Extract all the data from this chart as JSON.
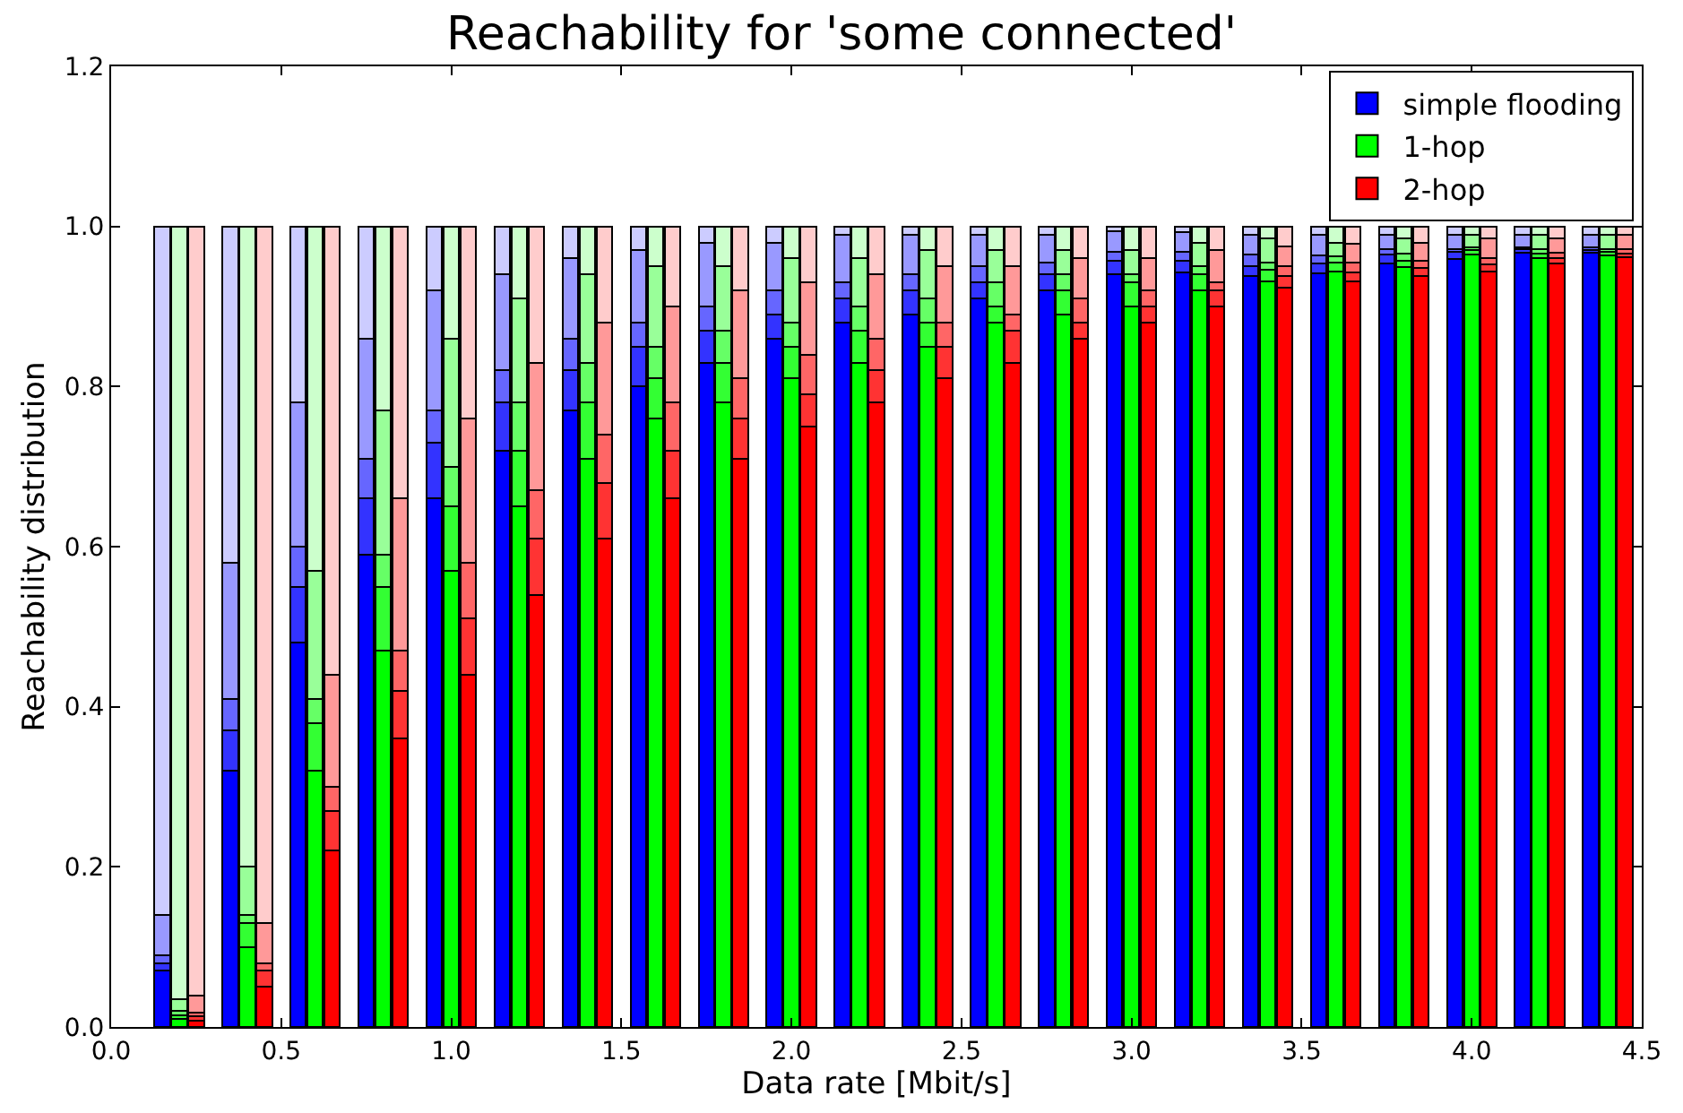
{
  "chart_data": {
    "type": "bar",
    "stacked": true,
    "title": "Reachability for 'some connected'",
    "xlabel": "Data rate [Mbit/s]",
    "ylabel": "Reachability distribution",
    "xlim": [
      0,
      4.5
    ],
    "ylim": [
      0,
      1.2
    ],
    "xticks": [
      {
        "value": 0,
        "label": "0.0"
      },
      0.5,
      {
        "value": 1,
        "label": "1.0"
      },
      1.5,
      {
        "value": 2,
        "label": "2.0"
      },
      2.5,
      {
        "value": 3,
        "label": "3.0"
      },
      3.5,
      {
        "value": 4,
        "label": "4.0"
      },
      4.5
    ],
    "yticks": [
      {
        "value": 0,
        "label": "0.0"
      },
      0.2,
      0.4,
      0.6,
      0.8,
      {
        "value": 1,
        "label": "1.0"
      },
      1.2
    ],
    "legend": "top right",
    "x": [
      0.15,
      0.2,
      0.25,
      0.35,
      0.4,
      0.45,
      0.55,
      0.6,
      0.65,
      0.75,
      0.8,
      0.85,
      0.95,
      1.0,
      1.05,
      1.15,
      1.2,
      1.25,
      1.35,
      1.4,
      1.45,
      1.55,
      1.6,
      1.65,
      1.75,
      1.8,
      1.85,
      1.95,
      2.0,
      2.05,
      2.15,
      2.2,
      2.25,
      2.35,
      2.4,
      2.45,
      2.55,
      2.6,
      2.65,
      2.75,
      2.8,
      2.85,
      2.95,
      3.0,
      3.05,
      3.15,
      3.2,
      3.25,
      3.35,
      3.4,
      3.45,
      3.55,
      3.6,
      3.65,
      3.75,
      3.8,
      3.85,
      3.95,
      4.0,
      4.05,
      4.15,
      4.2,
      4.25,
      4.35,
      4.4,
      4.45
    ],
    "series": [
      {
        "name": "simple flooding",
        "color": "#0000ff",
        "values": [
          0.07,
          null,
          null,
          0.32,
          null,
          null,
          0.48,
          null,
          null,
          0.59,
          null,
          null,
          0.66,
          null,
          null,
          0.72,
          null,
          null,
          0.77,
          null,
          null,
          0.8,
          null,
          null,
          0.83,
          null,
          null,
          0.86,
          null,
          null,
          0.88,
          null,
          null,
          0.89,
          null,
          null,
          0.91,
          null,
          null,
          0.92,
          null,
          null,
          0.94,
          null,
          null,
          0.942,
          null,
          null,
          0.938,
          null,
          null,
          0.941,
          null,
          null,
          0.954,
          null,
          null,
          0.959,
          null,
          null,
          0.967,
          null,
          null,
          0.967,
          null,
          null
        ]
      },
      {
        "color": "#3333ff",
        "values": [
          0.01,
          null,
          null,
          0.05,
          null,
          null,
          0.07,
          null,
          null,
          0.07,
          null,
          null,
          0.07,
          null,
          null,
          0.06,
          null,
          null,
          0.05,
          null,
          null,
          0.05,
          null,
          null,
          0.04,
          null,
          null,
          0.03,
          null,
          null,
          0.03,
          null,
          null,
          0.03,
          null,
          null,
          0.02,
          null,
          null,
          0.02,
          null,
          null,
          0.017,
          null,
          null,
          0.015,
          null,
          null,
          0.012,
          null,
          null,
          0.013,
          null,
          null,
          0.011,
          null,
          null,
          0.009,
          null,
          null,
          0.005,
          null,
          null,
          0.004,
          null,
          null
        ]
      },
      {
        "color": "#6666ff",
        "values": [
          0.01,
          null,
          null,
          0.04,
          null,
          null,
          0.05,
          null,
          null,
          0.05,
          null,
          null,
          0.04,
          null,
          null,
          0.04,
          null,
          null,
          0.04,
          null,
          null,
          0.03,
          null,
          null,
          0.03,
          null,
          null,
          0.03,
          null,
          null,
          0.02,
          null,
          null,
          0.02,
          null,
          null,
          0.02,
          null,
          null,
          0.015,
          null,
          null,
          0.011,
          null,
          null,
          0.011,
          null,
          null,
          0.015,
          null,
          null,
          0.01,
          null,
          null,
          0.007,
          null,
          null,
          0.004,
          null,
          null,
          0.002,
          null,
          null,
          0.003,
          null,
          null
        ]
      },
      {
        "color": "#9999ff",
        "values": [
          0.05,
          null,
          null,
          0.17,
          null,
          null,
          0.18,
          null,
          null,
          0.15,
          null,
          null,
          0.15,
          null,
          null,
          0.12,
          null,
          null,
          0.1,
          null,
          null,
          0.09,
          null,
          null,
          0.08,
          null,
          null,
          0.06,
          null,
          null,
          0.06,
          null,
          null,
          0.05,
          null,
          null,
          0.04,
          null,
          null,
          0.035,
          null,
          null,
          0.026,
          null,
          null,
          0.025,
          null,
          null,
          0.025,
          null,
          null,
          0.026,
          null,
          null,
          0.018,
          null,
          null,
          0.018,
          null,
          null,
          0.016,
          null,
          null,
          0.016,
          null,
          null
        ]
      },
      {
        "color": "#ccccff",
        "values": [
          0.86,
          null,
          null,
          0.42,
          null,
          null,
          0.22,
          null,
          null,
          0.14,
          null,
          null,
          0.08,
          null,
          null,
          0.06,
          null,
          null,
          0.04,
          null,
          null,
          0.03,
          null,
          null,
          0.02,
          null,
          null,
          0.02,
          null,
          null,
          0.01,
          null,
          null,
          0.01,
          null,
          null,
          0.01,
          null,
          null,
          0.01,
          null,
          null,
          0.006,
          null,
          null,
          0.007,
          null,
          null,
          0.01,
          null,
          null,
          0.01,
          null,
          null,
          0.01,
          null,
          null,
          0.01,
          null,
          null,
          0.01,
          null,
          null,
          0.01,
          null,
          null
        ]
      },
      {
        "name": "1-hop",
        "color": "#00ff00",
        "values": [
          null,
          0.01,
          null,
          null,
          0.1,
          null,
          null,
          0.32,
          null,
          null,
          0.47,
          null,
          null,
          0.57,
          null,
          null,
          0.65,
          null,
          null,
          0.71,
          null,
          null,
          0.76,
          null,
          null,
          0.78,
          null,
          null,
          0.81,
          null,
          null,
          0.83,
          null,
          null,
          0.85,
          null,
          null,
          0.88,
          null,
          null,
          0.89,
          null,
          null,
          0.9,
          null,
          null,
          0.92,
          null,
          null,
          0.931,
          null,
          null,
          0.944,
          null,
          null,
          0.949,
          null,
          null,
          0.965,
          null,
          null,
          0.961,
          null,
          null,
          0.964,
          null
        ]
      },
      {
        "color": "#33ff33",
        "values": [
          null,
          0.005,
          null,
          null,
          0.03,
          null,
          null,
          0.06,
          null,
          null,
          0.08,
          null,
          null,
          0.08,
          null,
          null,
          0.07,
          null,
          null,
          0.07,
          null,
          null,
          0.05,
          null,
          null,
          0.05,
          null,
          null,
          0.04,
          null,
          null,
          0.04,
          null,
          null,
          0.03,
          null,
          null,
          0.02,
          null,
          null,
          0.03,
          null,
          null,
          0.03,
          null,
          null,
          0.02,
          null,
          null,
          0.015,
          null,
          null,
          0.011,
          null,
          null,
          0.008,
          null,
          null,
          0.005,
          null,
          null,
          0.005,
          null,
          null,
          0.004,
          null
        ]
      },
      {
        "color": "#66ff66",
        "values": [
          null,
          0.005,
          null,
          null,
          0.01,
          null,
          null,
          0.03,
          null,
          null,
          0.04,
          null,
          null,
          0.05,
          null,
          null,
          0.06,
          null,
          null,
          0.05,
          null,
          null,
          0.04,
          null,
          null,
          0.04,
          null,
          null,
          0.03,
          null,
          null,
          0.03,
          null,
          null,
          0.03,
          null,
          null,
          0.03,
          null,
          null,
          0.02,
          null,
          null,
          0.01,
          null,
          null,
          0.01,
          null,
          null,
          0.009,
          null,
          null,
          0.008,
          null,
          null,
          0.009,
          null,
          null,
          0.004,
          null,
          null,
          0.006,
          null,
          null,
          0.004,
          null
        ]
      },
      {
        "color": "#99ff99",
        "values": [
          null,
          0.015,
          null,
          null,
          0.06,
          null,
          null,
          0.16,
          null,
          null,
          0.18,
          null,
          null,
          0.16,
          null,
          null,
          0.13,
          null,
          null,
          0.11,
          null,
          null,
          0.1,
          null,
          null,
          0.08,
          null,
          null,
          0.08,
          null,
          null,
          0.06,
          null,
          null,
          0.06,
          null,
          null,
          0.04,
          null,
          null,
          0.03,
          null,
          null,
          0.03,
          null,
          null,
          0.03,
          null,
          null,
          0.03,
          null,
          null,
          0.017,
          null,
          null,
          0.019,
          null,
          null,
          0.016,
          null,
          null,
          0.018,
          null,
          null,
          0.018,
          null
        ]
      },
      {
        "color": "#ccffcc",
        "values": [
          null,
          0.965,
          null,
          null,
          0.8,
          null,
          null,
          0.43,
          null,
          null,
          0.23,
          null,
          null,
          0.14,
          null,
          null,
          0.09,
          null,
          null,
          0.06,
          null,
          null,
          0.05,
          null,
          null,
          0.05,
          null,
          null,
          0.04,
          null,
          null,
          0.04,
          null,
          null,
          0.03,
          null,
          null,
          0.03,
          null,
          null,
          0.03,
          null,
          null,
          0.03,
          null,
          null,
          0.02,
          null,
          null,
          0.015,
          null,
          null,
          0.02,
          null,
          null,
          0.015,
          null,
          null,
          0.01,
          null,
          null,
          0.01,
          null,
          null,
          0.01,
          null
        ]
      },
      {
        "name": "2-hop",
        "color": "#ff0000",
        "values": [
          null,
          null,
          0.008,
          null,
          null,
          0.05,
          null,
          null,
          0.22,
          null,
          null,
          0.36,
          null,
          null,
          0.44,
          null,
          null,
          0.54,
          null,
          null,
          0.61,
          null,
          null,
          0.66,
          null,
          null,
          0.71,
          null,
          null,
          0.75,
          null,
          null,
          0.78,
          null,
          null,
          0.81,
          null,
          null,
          0.83,
          null,
          null,
          0.86,
          null,
          null,
          0.88,
          null,
          null,
          0.9,
          null,
          null,
          0.924,
          null,
          null,
          0.931,
          null,
          null,
          0.938,
          null,
          null,
          0.944,
          null,
          null,
          0.954,
          null,
          null,
          0.962
        ]
      },
      {
        "color": "#ff3333",
        "values": [
          null,
          null,
          0.005,
          null,
          null,
          0.02,
          null,
          null,
          0.05,
          null,
          null,
          0.06,
          null,
          null,
          0.07,
          null,
          null,
          0.07,
          null,
          null,
          0.07,
          null,
          null,
          0.06,
          null,
          null,
          0.05,
          null,
          null,
          0.04,
          null,
          null,
          0.04,
          null,
          null,
          0.04,
          null,
          null,
          0.04,
          null,
          null,
          0.02,
          null,
          null,
          0.02,
          null,
          null,
          0.02,
          null,
          null,
          0.014,
          null,
          null,
          0.011,
          null,
          null,
          0.01,
          null,
          null,
          0.009,
          null,
          null,
          0.007,
          null,
          null,
          0.004
        ]
      },
      {
        "color": "#ff6666",
        "values": [
          null,
          null,
          0.005,
          null,
          null,
          0.01,
          null,
          null,
          0.03,
          null,
          null,
          0.05,
          null,
          null,
          0.07,
          null,
          null,
          0.06,
          null,
          null,
          0.06,
          null,
          null,
          0.06,
          null,
          null,
          0.05,
          null,
          null,
          0.05,
          null,
          null,
          0.04,
          null,
          null,
          0.03,
          null,
          null,
          0.02,
          null,
          null,
          0.03,
          null,
          null,
          0.02,
          null,
          null,
          0.01,
          null,
          null,
          0.012,
          null,
          null,
          0.013,
          null,
          null,
          0.009,
          null,
          null,
          0.007,
          null,
          null,
          0.006,
          null,
          null,
          0.006
        ]
      },
      {
        "color": "#ff9999",
        "values": [
          null,
          null,
          0.021,
          null,
          null,
          0.05,
          null,
          null,
          0.14,
          null,
          null,
          0.19,
          null,
          null,
          0.18,
          null,
          null,
          0.16,
          null,
          null,
          0.14,
          null,
          null,
          0.12,
          null,
          null,
          0.11,
          null,
          null,
          0.09,
          null,
          null,
          0.08,
          null,
          null,
          0.07,
          null,
          null,
          0.06,
          null,
          null,
          0.05,
          null,
          null,
          0.04,
          null,
          null,
          0.04,
          null,
          null,
          0.025,
          null,
          null,
          0.023,
          null,
          null,
          0.023,
          null,
          null,
          0.025,
          null,
          null,
          0.018,
          null,
          null,
          0.018
        ]
      },
      {
        "color": "#ffcccc",
        "values": [
          null,
          null,
          0.961,
          null,
          null,
          0.87,
          null,
          null,
          0.56,
          null,
          null,
          0.34,
          null,
          null,
          0.24,
          null,
          null,
          0.17,
          null,
          null,
          0.12,
          null,
          null,
          0.1,
          null,
          null,
          0.08,
          null,
          null,
          0.07,
          null,
          null,
          0.06,
          null,
          null,
          0.05,
          null,
          null,
          0.05,
          null,
          null,
          0.04,
          null,
          null,
          0.04,
          null,
          null,
          0.03,
          null,
          null,
          0.025,
          null,
          null,
          0.022,
          null,
          null,
          0.02,
          null,
          null,
          0.015,
          null,
          null,
          0.015,
          null,
          null,
          0.01
        ]
      }
    ]
  }
}
